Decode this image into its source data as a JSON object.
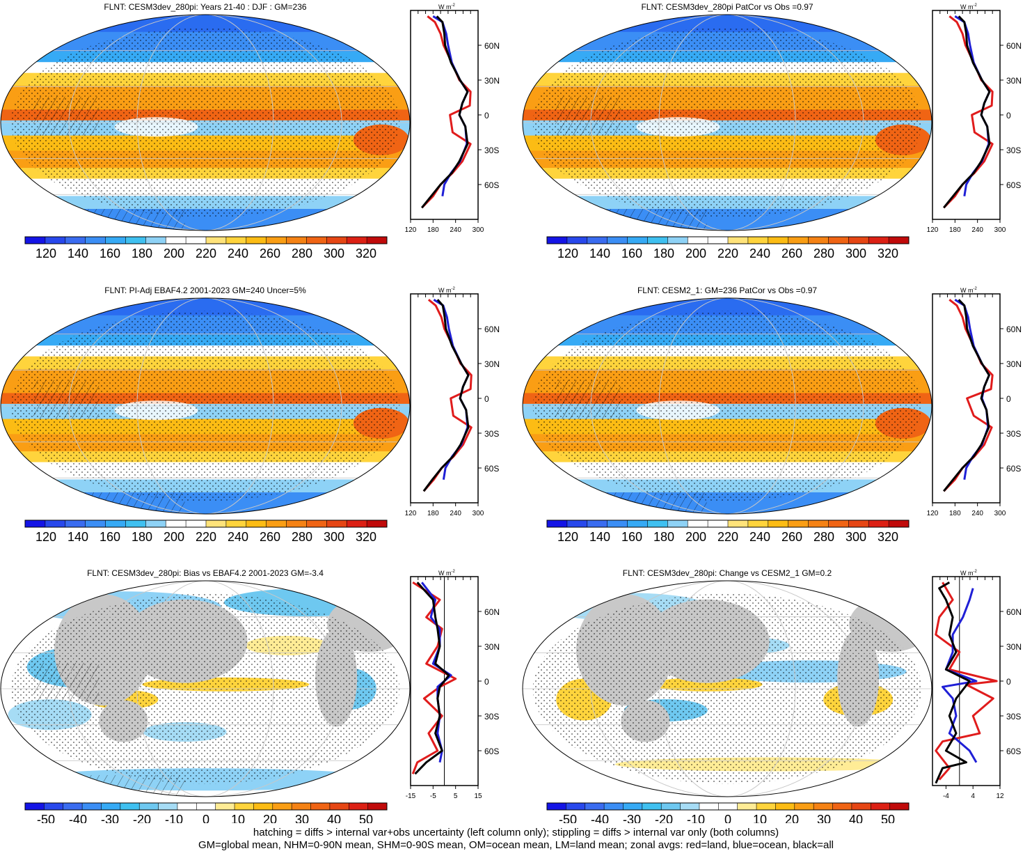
{
  "panels": [
    {
      "id": "p1",
      "title": "FLNT: CESM3dev_280pi: Years 21-40 : DJF : GM=236",
      "colorbar": {
        "palette": "full",
        "tick_labels": [
          "120",
          "140",
          "160",
          "180",
          "200",
          "220",
          "240",
          "260",
          "280",
          "300",
          "320"
        ]
      },
      "zonal_profile": {
        "unit_label": "W m",
        "unit_superscript": "-2",
        "x_tick_labels": [
          "120",
          "180",
          "240",
          "300"
        ],
        "y_tick_labels": [
          "60N",
          "30N",
          "0",
          "30S",
          "60S"
        ]
      }
    },
    {
      "id": "p2",
      "title": "FLNT: CESM3dev_280pi PatCor vs Obs =0.97",
      "colorbar": {
        "palette": "full",
        "tick_labels": [
          "120",
          "140",
          "160",
          "180",
          "200",
          "220",
          "240",
          "260",
          "280",
          "300",
          "320"
        ]
      },
      "zonal_profile": {
        "unit_label": "W m",
        "unit_superscript": "-2",
        "x_tick_labels": [
          "120",
          "180",
          "240",
          "300"
        ],
        "y_tick_labels": [
          "60N",
          "30N",
          "0",
          "30S",
          "60S"
        ]
      }
    },
    {
      "id": "p3",
      "title": "FLNT: PI-Adj EBAF4.2 2001-2023 GM=240 Uncer=5%",
      "colorbar": {
        "palette": "full",
        "tick_labels": [
          "120",
          "140",
          "160",
          "180",
          "200",
          "220",
          "240",
          "260",
          "280",
          "300",
          "320"
        ]
      },
      "zonal_profile": {
        "unit_label": "W m",
        "unit_superscript": "-2",
        "x_tick_labels": [
          "120",
          "180",
          "240",
          "300"
        ],
        "y_tick_labels": [
          "60N",
          "30N",
          "0",
          "30S",
          "60S"
        ]
      }
    },
    {
      "id": "p4",
      "title": "FLNT: CESM2_1: GM=236 PatCor vs Obs =0.97",
      "colorbar": {
        "palette": "full",
        "tick_labels": [
          "120",
          "140",
          "160",
          "180",
          "200",
          "220",
          "240",
          "260",
          "280",
          "300",
          "320"
        ]
      },
      "zonal_profile": {
        "unit_label": "W m",
        "unit_superscript": "-2",
        "x_tick_labels": [
          "120",
          "180",
          "240",
          "300"
        ],
        "y_tick_labels": [
          "60N",
          "30N",
          "0",
          "30S",
          "60S"
        ]
      }
    },
    {
      "id": "p5",
      "title": "FLNT: CESM3dev_280pi: Bias vs EBAF4.2 2001-2023 GM=-3.4",
      "colorbar": {
        "palette": "diverging",
        "tick_labels": [
          "-50",
          "-40",
          "-30",
          "-20",
          "-10",
          "0",
          "10",
          "20",
          "30",
          "40",
          "50"
        ]
      },
      "zonal_profile": {
        "unit_label": "W m",
        "unit_superscript": "-2",
        "x_tick_labels": [
          "-15",
          "-5",
          "5",
          "15"
        ],
        "y_tick_labels": [
          "60N",
          "30N",
          "0",
          "30S",
          "60S"
        ]
      }
    },
    {
      "id": "p6",
      "title": "FLNT: CESM3dev_280pi: Change vs CESM2_1 GM=0.2",
      "colorbar": {
        "palette": "diverging",
        "tick_labels": [
          "-50",
          "-40",
          "-30",
          "-20",
          "-10",
          "0",
          "10",
          "20",
          "30",
          "40",
          "50"
        ]
      },
      "zonal_profile": {
        "unit_label": "W m",
        "unit_superscript": "-2",
        "x_tick_labels": [
          "-4",
          "4",
          "12"
        ],
        "y_tick_labels": [
          "60N",
          "30N",
          "0",
          "30S",
          "60S"
        ]
      }
    }
  ],
  "footer": {
    "line1": "hatching = diffs > internal var+obs uncertainty (left column only); stippling = diffs > internal var only (both columns)",
    "line2": "GM=global mean, NHM=0-90N mean, SHM=0-90S mean, OM=ocean mean, LM=land mean; zonal avgs: red=land, blue=ocean, black=all"
  },
  "chart_data": [
    {
      "type": "line",
      "panel": "p1",
      "title": "FLNT: CESM3dev_280pi: Years 21-40 : DJF : GM=236",
      "xlabel": "W m-2",
      "xlim": [
        120,
        300
      ],
      "ylim": [
        -90,
        90
      ],
      "y_tick_labels": [
        "60N",
        "30N",
        "0",
        "30S",
        "60S"
      ],
      "series": [
        {
          "name": "all",
          "color": "#000000",
          "x": [
            150,
            175,
            200,
            230,
            250,
            272,
            266,
            250,
            258,
            272,
            252,
            228,
            212,
            210,
            205,
            190
          ],
          "y": [
            -80,
            -70,
            -60,
            -50,
            -40,
            -25,
            -10,
            0,
            10,
            20,
            30,
            45,
            60,
            70,
            80,
            85
          ]
        },
        {
          "name": "ocean",
          "color": "#1f1fd6",
          "x": [
            205,
            210,
            228,
            252,
            270,
            266,
            250,
            258,
            272,
            252,
            230,
            220,
            215,
            205,
            180
          ],
          "y": [
            -70,
            -60,
            -50,
            -40,
            -25,
            -10,
            0,
            10,
            20,
            30,
            45,
            60,
            70,
            80,
            85
          ]
        },
        {
          "name": "land",
          "color": "#e01c1c",
          "x": [
            150,
            180,
            200,
            232,
            258,
            280,
            232,
            225,
            278,
            280,
            250,
            230,
            208,
            200,
            185,
            165
          ],
          "y": [
            -80,
            -70,
            -60,
            -50,
            -40,
            -25,
            -15,
            0,
            8,
            20,
            30,
            45,
            60,
            70,
            80,
            85
          ]
        }
      ]
    },
    {
      "type": "line",
      "panel": "p2",
      "title": "FLNT: CESM3dev_280pi PatCor vs Obs =0.97",
      "xlabel": "W m-2",
      "xlim": [
        120,
        300
      ],
      "ylim": [
        -90,
        90
      ],
      "y_tick_labels": [
        "60N",
        "30N",
        "0",
        "30S",
        "60S"
      ],
      "series": [
        {
          "name": "all",
          "color": "#000000",
          "x": [
            150,
            175,
            200,
            230,
            250,
            272,
            266,
            250,
            258,
            272,
            252,
            228,
            212,
            210,
            205,
            190
          ],
          "y": [
            -80,
            -70,
            -60,
            -50,
            -40,
            -25,
            -10,
            0,
            10,
            20,
            30,
            45,
            60,
            70,
            80,
            85
          ]
        },
        {
          "name": "ocean",
          "color": "#1f1fd6",
          "x": [
            205,
            210,
            228,
            252,
            270,
            266,
            250,
            258,
            272,
            252,
            230,
            220,
            215,
            205,
            180
          ],
          "y": [
            -70,
            -60,
            -50,
            -40,
            -25,
            -10,
            0,
            10,
            20,
            30,
            45,
            60,
            70,
            80,
            85
          ]
        },
        {
          "name": "land",
          "color": "#e01c1c",
          "x": [
            150,
            180,
            200,
            232,
            258,
            280,
            232,
            225,
            278,
            280,
            250,
            230,
            208,
            200,
            185,
            165
          ],
          "y": [
            -80,
            -70,
            -60,
            -50,
            -40,
            -25,
            -15,
            0,
            8,
            20,
            30,
            45,
            60,
            70,
            80,
            85
          ]
        }
      ]
    },
    {
      "type": "line",
      "panel": "p3",
      "title": "FLNT: PI-Adj EBAF4.2 2001-2023 GM=240 Uncer=5%",
      "xlabel": "W m-2",
      "xlim": [
        120,
        300
      ],
      "ylim": [
        -90,
        90
      ],
      "y_tick_labels": [
        "60N",
        "30N",
        "0",
        "30S",
        "60S"
      ],
      "series": [
        {
          "name": "all",
          "color": "#000000",
          "x": [
            155,
            178,
            203,
            233,
            253,
            274,
            268,
            252,
            260,
            274,
            255,
            231,
            214,
            211,
            206,
            192
          ],
          "y": [
            -80,
            -70,
            -60,
            -50,
            -40,
            -25,
            -10,
            0,
            10,
            20,
            30,
            45,
            60,
            70,
            80,
            85
          ]
        },
        {
          "name": "ocean",
          "color": "#1f1fd6",
          "x": [
            208,
            213,
            231,
            255,
            272,
            268,
            252,
            260,
            274,
            255,
            233,
            222,
            217,
            207,
            182
          ],
          "y": [
            -70,
            -60,
            -50,
            -40,
            -25,
            -10,
            0,
            10,
            20,
            30,
            45,
            60,
            70,
            80,
            85
          ]
        },
        {
          "name": "land",
          "color": "#e01c1c",
          "x": [
            155,
            182,
            203,
            235,
            260,
            282,
            234,
            227,
            280,
            282,
            253,
            233,
            210,
            202,
            187,
            168
          ],
          "y": [
            -80,
            -70,
            -60,
            -50,
            -40,
            -25,
            -15,
            0,
            8,
            20,
            30,
            45,
            60,
            70,
            80,
            85
          ]
        }
      ]
    },
    {
      "type": "line",
      "panel": "p4",
      "title": "FLNT: CESM2_1: GM=236 PatCor vs Obs =0.97",
      "xlabel": "W m-2",
      "xlim": [
        120,
        300
      ],
      "ylim": [
        -90,
        90
      ],
      "y_tick_labels": [
        "60N",
        "30N",
        "0",
        "30S",
        "60S"
      ],
      "series": [
        {
          "name": "all",
          "color": "#000000",
          "x": [
            150,
            175,
            200,
            230,
            250,
            270,
            264,
            250,
            258,
            271,
            252,
            228,
            212,
            210,
            205,
            190
          ],
          "y": [
            -80,
            -70,
            -60,
            -50,
            -40,
            -25,
            -10,
            0,
            10,
            20,
            30,
            45,
            60,
            70,
            80,
            85
          ]
        },
        {
          "name": "ocean",
          "color": "#1f1fd6",
          "x": [
            205,
            210,
            228,
            252,
            268,
            264,
            252,
            258,
            271,
            252,
            230,
            220,
            215,
            205,
            180
          ],
          "y": [
            -70,
            -60,
            -50,
            -40,
            -25,
            -10,
            0,
            10,
            20,
            30,
            45,
            60,
            70,
            80,
            85
          ]
        },
        {
          "name": "land",
          "color": "#e01c1c",
          "x": [
            150,
            180,
            200,
            232,
            258,
            278,
            230,
            212,
            276,
            280,
            250,
            230,
            208,
            200,
            185,
            165
          ],
          "y": [
            -80,
            -70,
            -60,
            -50,
            -40,
            -25,
            -15,
            0,
            8,
            20,
            30,
            45,
            60,
            70,
            80,
            85
          ]
        }
      ]
    },
    {
      "type": "line",
      "panel": "p5",
      "title": "FLNT: CESM3dev_280pi: Bias vs EBAF4.2 2001-2023 GM=-3.4",
      "xlabel": "W m-2",
      "xlim": [
        -15,
        15
      ],
      "ylim": [
        -90,
        90
      ],
      "y_tick_labels": [
        "60N",
        "30N",
        "0",
        "30S",
        "60S"
      ],
      "series": [
        {
          "name": "all",
          "color": "#000000",
          "x": [
            -13,
            -8,
            -1,
            -4,
            -2,
            -3,
            -2,
            2,
            -4,
            -2,
            -3,
            -4,
            -5,
            -12
          ],
          "y": [
            -80,
            -70,
            -60,
            -45,
            -30,
            -15,
            -5,
            5,
            15,
            30,
            45,
            55,
            70,
            85
          ]
        },
        {
          "name": "ocean",
          "color": "#1f1fd6",
          "x": [
            -2,
            -1,
            -3,
            -2,
            -3,
            -3,
            3,
            -5,
            -2,
            -2,
            -6,
            -4,
            -10
          ],
          "y": [
            -70,
            -60,
            -45,
            -30,
            -15,
            -5,
            5,
            15,
            30,
            45,
            55,
            70,
            85
          ]
        },
        {
          "name": "land",
          "color": "#e01c1c",
          "x": [
            -14,
            -12,
            -3,
            -7,
            -1,
            -9,
            -2,
            5,
            -8,
            -3,
            -1,
            -8,
            -2,
            -14
          ],
          "y": [
            -80,
            -70,
            -60,
            -45,
            -30,
            -15,
            -5,
            2,
            15,
            30,
            45,
            55,
            70,
            85
          ]
        }
      ]
    },
    {
      "type": "line",
      "panel": "p6",
      "title": "FLNT: CESM3dev_280pi: Change vs CESM2_1 GM=0.2",
      "xlabel": "W m-2",
      "xlim": [
        -8,
        12
      ],
      "ylim": [
        -90,
        90
      ],
      "y_tick_labels": [
        "60N",
        "30N",
        "0",
        "30S",
        "60S"
      ],
      "series": [
        {
          "name": "all",
          "color": "#000000",
          "x": [
            -7,
            -5,
            2,
            -4,
            -1,
            -3,
            -1,
            3,
            -4,
            -1,
            -3,
            -2,
            -4,
            -6,
            -3
          ],
          "y": [
            -88,
            -75,
            -70,
            -60,
            -45,
            -30,
            -15,
            0,
            10,
            25,
            40,
            55,
            70,
            80,
            85
          ]
        },
        {
          "name": "ocean",
          "color": "#1f1fd6",
          "x": [
            5,
            3,
            -3,
            -1,
            -2,
            -5,
            5,
            -4,
            -2,
            -2,
            1,
            3,
            4
          ],
          "y": [
            -70,
            -60,
            -45,
            -30,
            -15,
            -5,
            0,
            10,
            25,
            40,
            55,
            70,
            80
          ]
        },
        {
          "name": "land",
          "color": "#e01c1c",
          "x": [
            -6,
            -3,
            -7,
            -5,
            6,
            4,
            10,
            2,
            11,
            -3,
            0,
            -7,
            -6,
            -2,
            -5
          ],
          "y": [
            -85,
            -75,
            -60,
            -52,
            -45,
            -30,
            -15,
            -3,
            0,
            10,
            25,
            40,
            55,
            70,
            85
          ]
        }
      ]
    }
  ]
}
